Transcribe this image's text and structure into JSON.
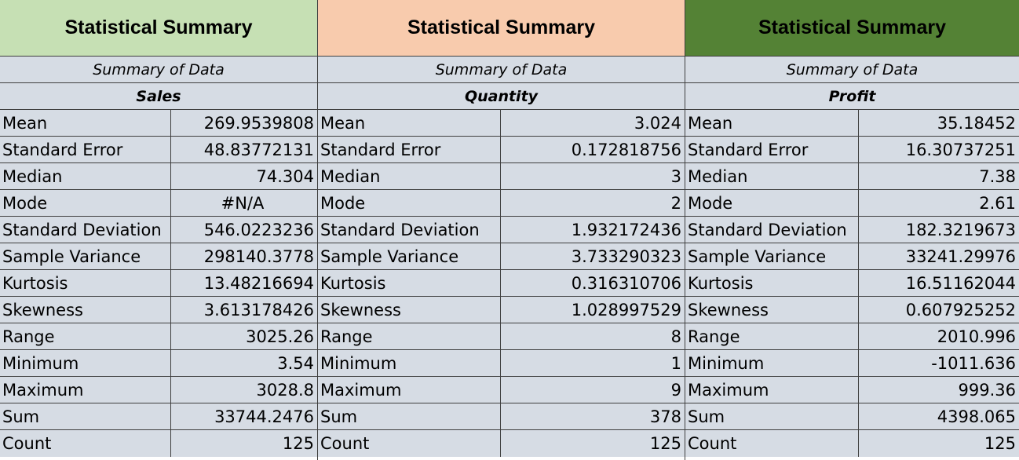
{
  "colors": {
    "title_sales_bg": "#c6e0b4",
    "title_quantity_bg": "#f8cbad",
    "title_profit_bg": "#548235",
    "body_bg": "#d6dce4",
    "grid_line": "#3f3f3f"
  },
  "blocks": [
    {
      "title": "Statistical Summary",
      "subtitle": "Summary of Data",
      "variable": "Sales",
      "rows": [
        {
          "label": "Mean",
          "value": "269.9539808"
        },
        {
          "label": "Standard Error",
          "value": "48.83772131"
        },
        {
          "label": "Median",
          "value": "74.304"
        },
        {
          "label": "Mode",
          "value": "#N/A"
        },
        {
          "label": "Standard Deviation",
          "value": "546.0223236"
        },
        {
          "label": "Sample Variance",
          "value": "298140.3778"
        },
        {
          "label": "Kurtosis",
          "value": "13.48216694"
        },
        {
          "label": "Skewness",
          "value": "3.613178426"
        },
        {
          "label": "Range",
          "value": "3025.26"
        },
        {
          "label": "Minimum",
          "value": "3.54"
        },
        {
          "label": "Maximum",
          "value": "3028.8"
        },
        {
          "label": "Sum",
          "value": "33744.2476"
        },
        {
          "label": "Count",
          "value": "125"
        }
      ]
    },
    {
      "title": "Statistical Summary",
      "subtitle": "Summary of Data",
      "variable": "Quantity",
      "rows": [
        {
          "label": "Mean",
          "value": "3.024"
        },
        {
          "label": "Standard Error",
          "value": "0.172818756"
        },
        {
          "label": "Median",
          "value": "3"
        },
        {
          "label": "Mode",
          "value": "2"
        },
        {
          "label": "Standard Deviation",
          "value": "1.932172436"
        },
        {
          "label": "Sample Variance",
          "value": "3.733290323"
        },
        {
          "label": "Kurtosis",
          "value": "0.316310706"
        },
        {
          "label": "Skewness",
          "value": "1.028997529"
        },
        {
          "label": "Range",
          "value": "8"
        },
        {
          "label": "Minimum",
          "value": "1"
        },
        {
          "label": "Maximum",
          "value": "9"
        },
        {
          "label": "Sum",
          "value": "378"
        },
        {
          "label": "Count",
          "value": "125"
        }
      ]
    },
    {
      "title": "Statistical Summary",
      "subtitle": "Summary of Data",
      "variable": "Profit",
      "rows": [
        {
          "label": "Mean",
          "value": "35.18452"
        },
        {
          "label": "Standard Error",
          "value": "16.30737251"
        },
        {
          "label": "Median",
          "value": "7.38"
        },
        {
          "label": "Mode",
          "value": "2.61"
        },
        {
          "label": "Standard Deviation",
          "value": "182.3219673"
        },
        {
          "label": "Sample Variance",
          "value": "33241.29976"
        },
        {
          "label": "Kurtosis",
          "value": "16.51162044"
        },
        {
          "label": "Skewness",
          "value": "0.607925252"
        },
        {
          "label": "Range",
          "value": "2010.996"
        },
        {
          "label": "Minimum",
          "value": "-1011.636"
        },
        {
          "label": "Maximum",
          "value": "999.36"
        },
        {
          "label": "Sum",
          "value": "4398.065"
        },
        {
          "label": "Count",
          "value": "125"
        }
      ]
    }
  ]
}
